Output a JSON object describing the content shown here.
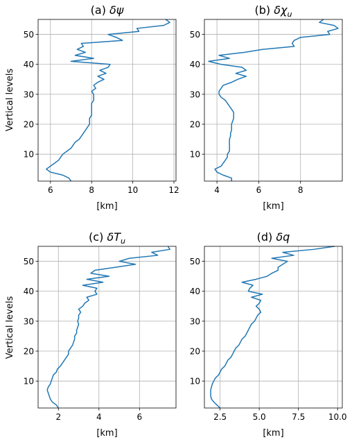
{
  "figure": {
    "ylabel": "Vertical levels"
  },
  "style": {
    "line_color": "#1f77b4",
    "grid_color": "#b0b0b0",
    "axis_color": "#000000"
  },
  "chart_data": [
    {
      "type": "line",
      "title_prefix": "(a) ",
      "title_symbol": "δψ",
      "title_sub": "",
      "xlabel": "[km]",
      "ylabel": "Vertical levels",
      "xlim": [
        5.4,
        12.1
      ],
      "ylim": [
        1,
        55
      ],
      "xticks": [
        6,
        8,
        10,
        12
      ],
      "yticks": [
        10,
        20,
        30,
        40,
        50
      ],
      "grid": true,
      "series": [
        {
          "x": [
            7.0,
            6.9,
            6.6,
            6.0,
            5.8,
            6.0,
            6.2,
            6.4,
            6.5,
            6.6,
            6.8,
            7.0,
            7.1,
            7.2,
            7.4,
            7.5,
            7.6,
            7.7,
            7.8,
            7.9,
            7.9,
            7.9,
            8.0,
            8.0,
            8.0,
            8.0,
            8.0,
            8.1,
            8.1,
            8.1,
            8.0,
            8.2,
            8.1,
            8.3,
            8.6,
            8.3,
            8.7,
            8.4,
            8.8,
            8.9,
            7.0,
            8.1,
            7.2,
            7.7,
            7.3,
            7.6,
            7.5,
            9.5,
            9.2,
            8.8,
            10.3,
            10.2,
            11.5,
            11.8,
            11.6
          ],
          "y": [
            1,
            2,
            3,
            4,
            5,
            6,
            7,
            8,
            9,
            10,
            11,
            12,
            13,
            14,
            15,
            16,
            17,
            18,
            19,
            20,
            21,
            22,
            23,
            24,
            25,
            26,
            27,
            28,
            29,
            30,
            31,
            32,
            33,
            34,
            35,
            36,
            37,
            38,
            39,
            40,
            41,
            42,
            43,
            44,
            45,
            46,
            47,
            48,
            49,
            50,
            51,
            52,
            53,
            54,
            55
          ]
        }
      ]
    },
    {
      "type": "line",
      "title_prefix": "(b) ",
      "title_symbol": "δχ",
      "title_sub": "u",
      "xlabel": "[km]",
      "ylabel": "",
      "xlim": [
        3.4,
        10.0
      ],
      "ylim": [
        1,
        55
      ],
      "xticks": [
        4,
        6,
        8
      ],
      "yticks": [
        10,
        20,
        30,
        40,
        50
      ],
      "grid": true,
      "series": [
        {
          "x": [
            4.7,
            4.7,
            4.3,
            4.0,
            3.9,
            4.2,
            4.3,
            4.4,
            4.5,
            4.5,
            4.6,
            4.6,
            4.6,
            4.6,
            4.6,
            4.65,
            4.65,
            4.7,
            4.7,
            4.7,
            4.75,
            4.8,
            4.8,
            4.8,
            4.7,
            4.6,
            4.5,
            4.4,
            4.2,
            4.1,
            4.1,
            4.2,
            4.3,
            4.7,
            5.0,
            5.4,
            4.9,
            5.4,
            5.2,
            4.2,
            3.6,
            4.6,
            4.1,
            5.3,
            6.2,
            7.7,
            7.6,
            7.7,
            8.0,
            9.4,
            9.3,
            9.8,
            9.6,
            8.9,
            9.1
          ],
          "y": [
            1,
            2,
            3,
            4,
            5,
            6,
            7,
            8,
            9,
            10,
            11,
            12,
            13,
            14,
            15,
            16,
            17,
            18,
            19,
            20,
            21,
            22,
            23,
            24,
            25,
            26,
            27,
            28,
            29,
            30,
            31,
            32,
            33,
            34,
            35,
            36,
            37,
            38,
            39,
            40,
            41,
            42,
            43,
            44,
            45,
            46,
            47,
            48,
            49,
            50,
            51,
            52,
            53,
            54,
            55
          ]
        }
      ]
    },
    {
      "type": "line",
      "title_prefix": "(c) ",
      "title_symbol": "δT",
      "title_sub": "u",
      "xlabel": "[km]",
      "ylabel": "Vertical levels",
      "xlim": [
        1.0,
        7.8
      ],
      "ylim": [
        1,
        55
      ],
      "xticks": [
        2,
        4,
        6
      ],
      "yticks": [
        10,
        20,
        30,
        40,
        50
      ],
      "grid": true,
      "series": [
        {
          "x": [
            2.0,
            1.9,
            1.7,
            1.6,
            1.55,
            1.5,
            1.45,
            1.5,
            1.6,
            1.65,
            1.7,
            1.75,
            1.9,
            1.95,
            2.1,
            2.2,
            2.3,
            2.4,
            2.5,
            2.5,
            2.6,
            2.7,
            2.75,
            2.8,
            2.8,
            2.9,
            2.9,
            2.95,
            3.0,
            2.95,
            3.0,
            3.0,
            3.1,
            3.0,
            3.2,
            3.3,
            3.5,
            3.4,
            3.9,
            3.8,
            3.9,
            3.2,
            4.2,
            3.4,
            4.5,
            3.6,
            3.8,
            4.8,
            5.8,
            5.0,
            5.5,
            6.9,
            6.6,
            7.5,
            7.4
          ],
          "y": [
            1,
            2,
            3,
            4,
            5,
            6,
            7,
            8,
            9,
            10,
            11,
            12,
            13,
            14,
            15,
            16,
            17,
            18,
            19,
            20,
            21,
            22,
            23,
            24,
            25,
            26,
            27,
            28,
            29,
            30,
            31,
            32,
            33,
            34,
            35,
            36,
            37,
            38,
            39,
            40,
            41,
            42,
            43,
            44,
            45,
            46,
            47,
            48,
            49,
            50,
            51,
            52,
            53,
            54,
            55
          ]
        }
      ]
    },
    {
      "type": "line",
      "title_prefix": "(d) ",
      "title_symbol": "δq",
      "title_sub": "",
      "xlabel": "[km]",
      "ylabel": "",
      "xlim": [
        1.5,
        10.3
      ],
      "ylim": [
        1,
        55
      ],
      "xticks": [
        2.5,
        5.0,
        7.5,
        10.0
      ],
      "xtick_labels": [
        "2.5",
        "5.0",
        "7.5",
        "10.0"
      ],
      "yticks": [
        10,
        20,
        30,
        40,
        50
      ],
      "grid": true,
      "series": [
        {
          "x": [
            2.5,
            2.3,
            2.1,
            1.95,
            1.9,
            1.9,
            1.9,
            1.95,
            2.0,
            2.1,
            2.2,
            2.4,
            2.5,
            2.6,
            2.8,
            2.9,
            3.0,
            3.2,
            3.3,
            3.4,
            3.5,
            3.7,
            3.8,
            3.9,
            4.1,
            4.2,
            4.3,
            4.4,
            4.5,
            4.7,
            4.8,
            4.9,
            5.1,
            5.0,
            4.8,
            5.0,
            5.1,
            4.5,
            5.2,
            4.3,
            4.4,
            4.6,
            3.9,
            4.8,
            5.5,
            5.8,
            6.2,
            6.2,
            6.5,
            6.8,
            5.8,
            7.2,
            6.5,
            8.5,
            9.8
          ],
          "y": [
            1,
            2,
            3,
            4,
            5,
            6,
            7,
            8,
            9,
            10,
            11,
            12,
            13,
            14,
            15,
            16,
            17,
            18,
            19,
            20,
            21,
            22,
            23,
            24,
            25,
            26,
            27,
            28,
            29,
            30,
            31,
            32,
            33,
            34,
            35,
            36,
            37,
            38,
            39,
            40,
            41,
            42,
            43,
            44,
            45,
            46,
            47,
            48,
            49,
            50,
            51,
            52,
            53,
            54,
            55
          ]
        }
      ]
    }
  ]
}
